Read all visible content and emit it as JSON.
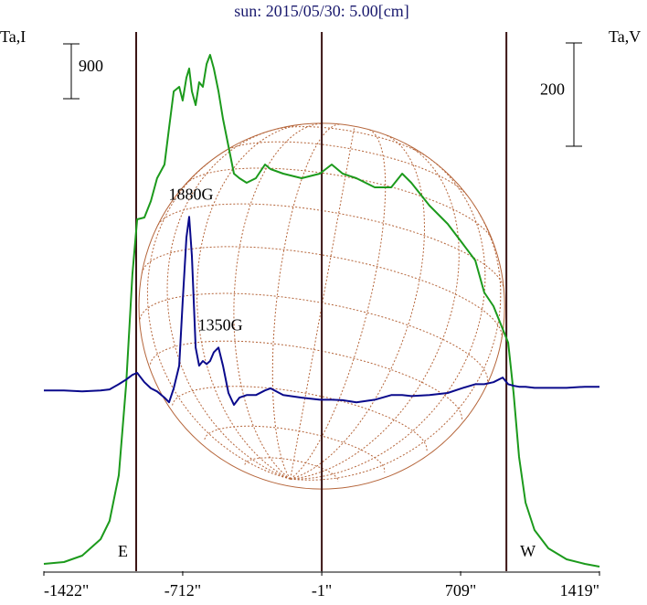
{
  "chart_data": {
    "type": "line",
    "title": "sun: 2015/05/30: 5.00[cm]",
    "y_label": "Ta,I",
    "y2_label": "Ta,V",
    "xlim": [
      -1422,
      1419
    ],
    "xticks": [
      {
        "value": -1422,
        "label": "-1422\""
      },
      {
        "value": -712,
        "label": "-712\""
      },
      {
        "value": -1,
        "label": "-1\""
      },
      {
        "value": 709,
        "label": "709\""
      },
      {
        "value": 1419,
        "label": "1419\""
      }
    ],
    "ylim": [
      0,
      8850
    ],
    "y2lim": [
      -350,
      694
    ],
    "y_scale_bar": 900,
    "y2_scale_bar": 200,
    "vlines": [
      {
        "value": -950,
        "label": "E"
      },
      {
        "value": -1
      },
      {
        "value": 943,
        "label": "W"
      }
    ],
    "disk": {
      "center_x": -1,
      "radius": 935,
      "color": "#b5653a"
    },
    "x": [
      -1422,
      -1319,
      -1226,
      -1132,
      -1086,
      -1039,
      -1001,
      -969,
      -945,
      -908,
      -875,
      -843,
      -805,
      -782,
      -758,
      -730,
      -712,
      -693,
      -679,
      -665,
      -646,
      -628,
      -609,
      -590,
      -572,
      -553,
      -529,
      -506,
      -478,
      -450,
      -422,
      -385,
      -338,
      -291,
      -263,
      -198,
      -104,
      -11,
      50,
      106,
      176,
      270,
      354,
      410,
      457,
      550,
      643,
      714,
      784,
      830,
      877,
      924,
      952,
      980,
      1008,
      1041,
      1087,
      1158,
      1251,
      1344,
      1419
    ],
    "series": [
      {
        "name": "Ta,I",
        "color": "#1c9a1c",
        "values": [
          120,
          150,
          255,
          525,
          825,
          1575,
          3075,
          4875,
          5775,
          5805,
          6075,
          6450,
          6675,
          7275,
          7875,
          7950,
          7725,
          8100,
          8250,
          7875,
          7650,
          8025,
          7950,
          8325,
          8475,
          8250,
          7875,
          7425,
          6975,
          6525,
          6450,
          6375,
          6450,
          6675,
          6600,
          6525,
          6450,
          6525,
          6675,
          6525,
          6450,
          6300,
          6300,
          6525,
          6375,
          6000,
          5700,
          5400,
          5100,
          4575,
          4350,
          3975,
          3750,
          2925,
          1875,
          1125,
          675,
          375,
          195,
          120,
          75
        ]
      },
      {
        "name": "Ta,V",
        "color": "#0a0a8c",
        "axis": "y2",
        "values": [
          0,
          0,
          -2,
          0,
          2,
          12,
          21,
          30,
          34,
          16,
          4,
          -2,
          -14,
          -23,
          4,
          48,
          172,
          296,
          336,
          260,
          83,
          48,
          57,
          51,
          57,
          74,
          83,
          48,
          -5,
          -28,
          -14,
          -9,
          -9,
          0,
          4,
          -9,
          -14,
          -18,
          -18,
          -19,
          -23,
          -18,
          -9,
          -9,
          -11,
          -9,
          -5,
          4,
          12,
          12,
          16,
          25,
          12,
          9,
          7,
          7,
          5,
          5,
          5,
          7,
          7
        ]
      }
    ],
    "annotations": [
      {
        "text": "1880G",
        "x": -679
      },
      {
        "text": "1350G",
        "x": -529
      }
    ]
  }
}
